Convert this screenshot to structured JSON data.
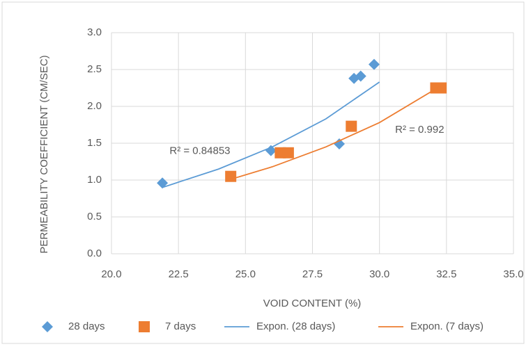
{
  "chart_data": {
    "type": "scatter",
    "xlabel": "VOID CONTENT (%)",
    "ylabel": "PERMEABILITY COEFFICIENT (CM/SEC)",
    "xlim": [
      20,
      35
    ],
    "ylim": [
      0,
      3
    ],
    "xticks": [
      {
        "value": 20,
        "label": "20.0"
      },
      22.5,
      {
        "value": 25,
        "label": "25.0"
      },
      27.5,
      {
        "value": 30,
        "label": "30.0"
      },
      32.5,
      {
        "value": 35,
        "label": "35.0"
      }
    ],
    "yticks": [
      {
        "value": 0,
        "label": "0.0"
      },
      0.5,
      {
        "value": 1,
        "label": "1.0"
      },
      1.5,
      {
        "value": 2,
        "label": "2.0"
      },
      2.5,
      {
        "value": 3,
        "label": "3.0"
      }
    ],
    "grid": true,
    "legend": "bottom",
    "series": [
      {
        "name": "28 days",
        "color": "#5b9bd5",
        "marker": "diamond",
        "x": [
          21.9,
          25.95,
          28.5,
          29.05,
          29.3,
          29.8
        ],
        "values": [
          0.96,
          1.4,
          1.49,
          2.38,
          2.41,
          2.57
        ]
      },
      {
        "name": "7 days",
        "color": "#ed7d31",
        "marker": "square",
        "x": [
          24.45,
          26.3,
          26.6,
          28.95,
          32.1,
          32.3
        ],
        "values": [
          1.05,
          1.37,
          1.37,
          1.73,
          2.25,
          2.25
        ]
      },
      {
        "name": "Expon. (28 days)",
        "color": "#5b9bd5",
        "marker": "line",
        "x": [
          21.9,
          24,
          26,
          28,
          30
        ],
        "values": [
          0.9,
          1.15,
          1.45,
          1.83,
          2.33
        ]
      },
      {
        "name": "Expon. (7 days)",
        "color": "#ed7d31",
        "marker": "line",
        "x": [
          24.45,
          26,
          28,
          30,
          32.3
        ],
        "values": [
          1.01,
          1.18,
          1.45,
          1.78,
          2.28
        ]
      }
    ],
    "annotations": [
      {
        "text": "R² = 0.84853",
        "x": 23.3,
        "y": 1.39
      },
      {
        "text": "R² = 0.992",
        "x": 31.5,
        "y": 1.68
      }
    ]
  }
}
